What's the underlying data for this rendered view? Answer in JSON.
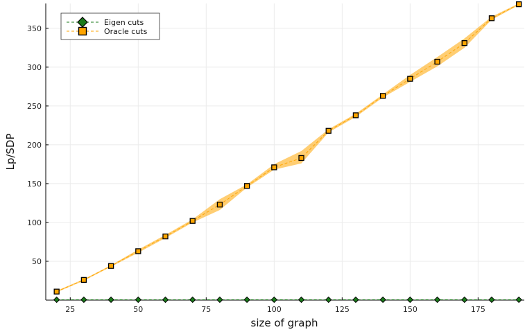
{
  "chart_data": {
    "type": "line",
    "title": "",
    "xlabel": "size of graph",
    "ylabel": "Lp/SDP",
    "xlim": [
      16,
      192
    ],
    "ylim": [
      0,
      382
    ],
    "xticks": [
      25,
      50,
      75,
      100,
      125,
      150,
      175
    ],
    "yticks": [
      50,
      100,
      150,
      200,
      250,
      300,
      350
    ],
    "grid": true,
    "legend_position": "top-left",
    "x": [
      20,
      30,
      40,
      50,
      60,
      70,
      80,
      90,
      100,
      110,
      120,
      130,
      140,
      150,
      160,
      170,
      180,
      190
    ],
    "series": [
      {
        "name": "Eigen cuts",
        "marker": "diamond",
        "color": "#1a7a1a",
        "values": [
          0.5,
          0.5,
          0.5,
          0.5,
          0.5,
          0.5,
          0.5,
          0.5,
          0.5,
          0.5,
          0.5,
          0.5,
          0.5,
          0.5,
          0.5,
          0.5,
          0.5,
          0.5
        ]
      },
      {
        "name": "Oracle cuts",
        "marker": "square",
        "color": "#ffa500",
        "values": [
          11,
          26,
          44,
          63,
          82,
          102,
          123,
          147,
          171,
          183,
          218,
          238,
          263,
          285,
          307,
          331,
          363,
          381
        ],
        "lower": [
          10,
          25,
          43,
          61,
          80,
          100,
          116,
          145,
          168,
          176,
          216,
          236,
          261,
          281,
          301,
          325,
          361,
          380
        ],
        "upper": [
          12,
          27,
          45,
          65,
          84,
          104,
          130,
          149,
          175,
          192,
          220,
          240,
          265,
          290,
          313,
          337,
          365,
          382
        ]
      }
    ]
  }
}
